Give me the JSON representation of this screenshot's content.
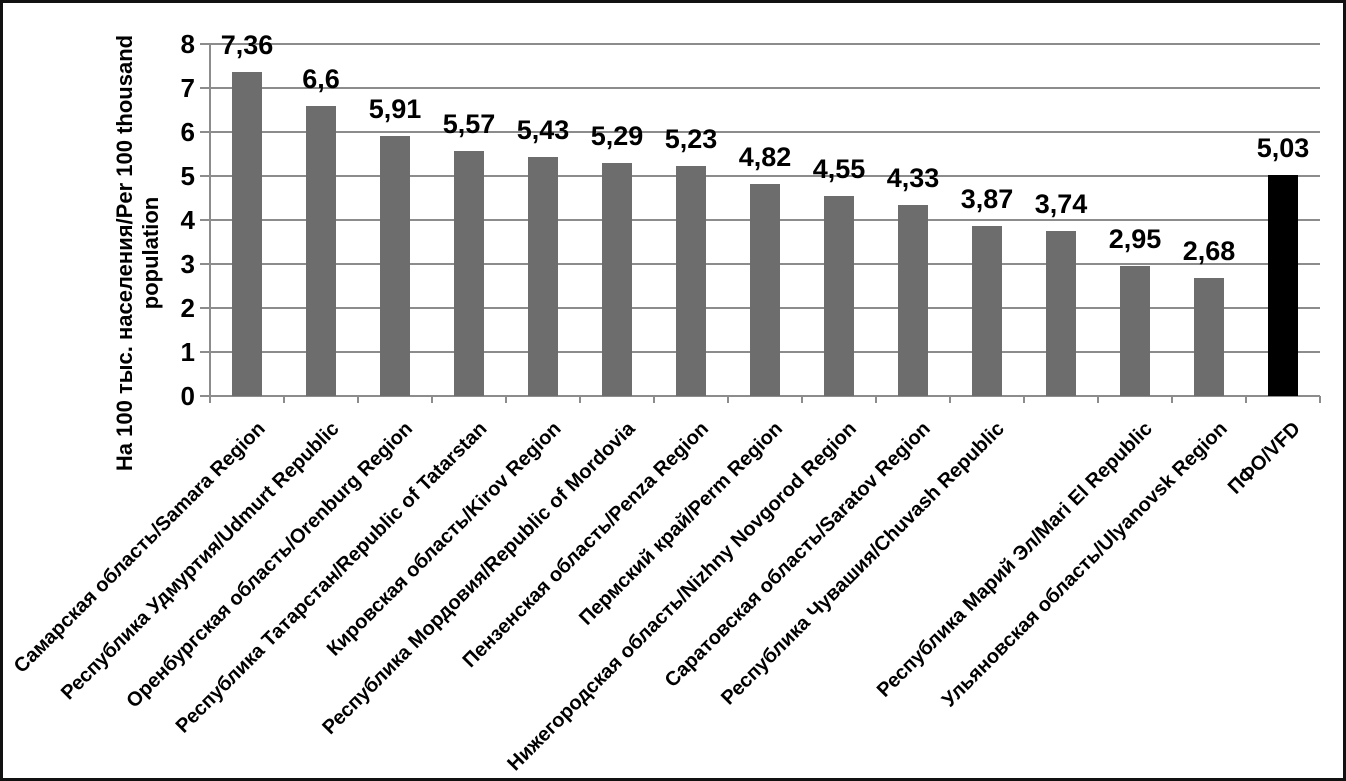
{
  "chart_data": {
    "type": "bar",
    "title": "",
    "xlabel": "",
    "ylabel_line1": "На 100 тыс. населения/Per 100 thousand",
    "ylabel_line2": "population",
    "ylim": [
      0,
      8
    ],
    "yticks": [
      0,
      1,
      2,
      3,
      4,
      5,
      6,
      7,
      8
    ],
    "grid": true,
    "legend": "none",
    "decimal_separator": ",",
    "colors": {
      "bar_default": "#6d6d6d",
      "bar_highlight": "#000000",
      "gridline": "#8c8c8c",
      "axis": "#8c8c8c",
      "text": "#000000",
      "frame_border": "#111111"
    },
    "bars": [
      {
        "label": "Самарская область/Samara Region",
        "value": 7.36,
        "value_label": "7,36",
        "color": "#6d6d6d"
      },
      {
        "label": "Республика Удмуртия/Udmurt Republic",
        "value": 6.6,
        "value_label": "6,6",
        "color": "#6d6d6d"
      },
      {
        "label": "Оренбургская область/Orenburg Region",
        "value": 5.91,
        "value_label": "5,91",
        "color": "#6d6d6d"
      },
      {
        "label": "Республика Татарстан/Republic of Tatarstan",
        "value": 5.57,
        "value_label": "5,57",
        "color": "#6d6d6d"
      },
      {
        "label": "Кировская область/Kirov Region",
        "value": 5.43,
        "value_label": "5,43",
        "color": "#6d6d6d"
      },
      {
        "label": "Республика Мордовия/Republic of Mordovia",
        "value": 5.29,
        "value_label": "5,29",
        "color": "#6d6d6d"
      },
      {
        "label": "Пензенская область/Penza Region",
        "value": 5.23,
        "value_label": "5,23",
        "color": "#6d6d6d"
      },
      {
        "label": "Пермский край/Perm Region",
        "value": 4.82,
        "value_label": "4,82",
        "color": "#6d6d6d"
      },
      {
        "label": "Нижегородская область/Nizhny Novgorod Region",
        "value": 4.55,
        "value_label": "4,55",
        "color": "#6d6d6d"
      },
      {
        "label": "Саратовская область/Saratov Region",
        "value": 4.33,
        "value_label": "4,33",
        "color": "#6d6d6d"
      },
      {
        "label": "Республика Чувашия/Chuvash Republic",
        "value": 3.87,
        "value_label": "3,87",
        "color": "#6d6d6d"
      },
      {
        "label": "",
        "value": 3.74,
        "value_label": "3,74",
        "color": "#6d6d6d"
      },
      {
        "label": "Республика Марий Эл/Mari El Republic",
        "value": 2.95,
        "value_label": "2,95",
        "color": "#6d6d6d"
      },
      {
        "label": "Ульяновская область/Ulyanovsk Region",
        "value": 2.68,
        "value_label": "2,68",
        "color": "#6d6d6d"
      },
      {
        "label": "ПФО/VFD",
        "value": 5.03,
        "value_label": "5,03",
        "color": "#000000"
      }
    ]
  }
}
